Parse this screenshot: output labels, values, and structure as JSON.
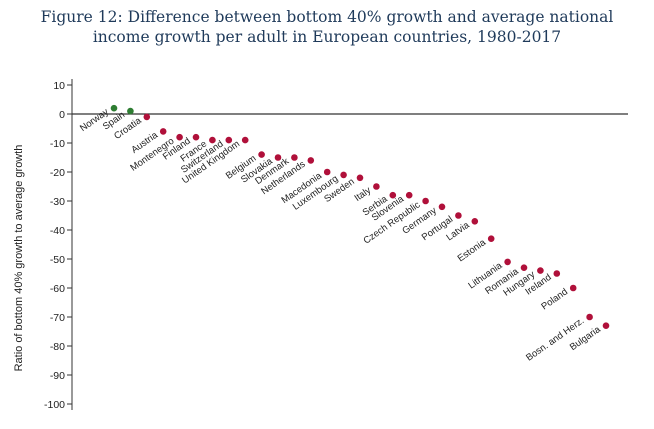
{
  "chart_data": {
    "type": "scatter",
    "title_line1": "Figure 12: Difference between bottom 40% growth and average national",
    "title_line2": "income growth per adult in European countries, 1980-2017",
    "xlabel": "",
    "ylabel": "Ratio of bottom 40% growth to average growth",
    "ylim": [
      -100,
      10
    ],
    "yticks": [
      10,
      0,
      -10,
      -20,
      -30,
      -40,
      -50,
      -60,
      -70,
      -80,
      -90,
      -100
    ],
    "grid": false,
    "colors": {
      "positive": "#2e7d32",
      "negative": "#b0103a",
      "zero_line": "#333333"
    },
    "categories": [
      "Norway",
      "Spain",
      "Croatia",
      "Austria",
      "Montenegro",
      "Finland",
      "France",
      "Switzerland",
      "United Kingdom",
      "Belgium",
      "Slovakia",
      "Denmark",
      "Netherlands",
      "Macedonia",
      "Luxembourg",
      "Sweden",
      "Italy",
      "Serbia",
      "Slovenia",
      "Czech Republic",
      "Germany",
      "Portugal",
      "Latvia",
      "Estonia",
      "Lithuania",
      "Romania",
      "Hungary",
      "Ireland",
      "Poland",
      "Bosn. and Herz.",
      "Bulgaria"
    ],
    "values": [
      2,
      1,
      -1,
      -6,
      -8,
      -8,
      -9,
      -9,
      -9,
      -14,
      -15,
      -15,
      -16,
      -20,
      -21,
      -22,
      -25,
      -28,
      -28,
      -30,
      -32,
      -35,
      -37,
      -43,
      -51,
      -53,
      -54,
      -55,
      -60,
      -70,
      -73
    ]
  }
}
